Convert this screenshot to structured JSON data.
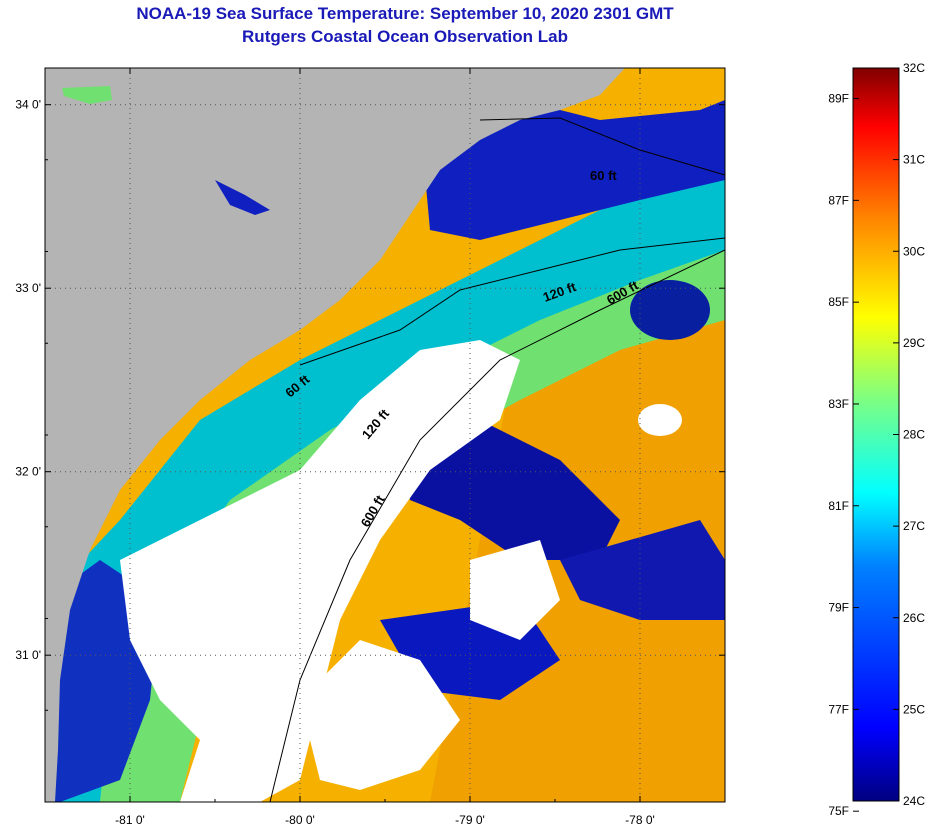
{
  "header": {
    "title": "NOAA-19 Sea Surface Temperature:  September 10, 2020 2301 GMT",
    "subtitle": "Rutgers Coastal Ocean Observation Lab"
  },
  "map": {
    "lon_range": [
      -81.5,
      -77.5
    ],
    "lat_range": [
      30.2,
      34.2
    ],
    "lon_ticks": [
      {
        "value": -81,
        "label": "-81 0'"
      },
      {
        "value": -80,
        "label": "-80 0'"
      },
      {
        "value": -79,
        "label": "-79 0'"
      },
      {
        "value": -78,
        "label": "-78 0'"
      }
    ],
    "lat_ticks": [
      {
        "value": 34,
        "label": "34 0'"
      },
      {
        "value": 33,
        "label": "33 0'"
      },
      {
        "value": 32,
        "label": "32 0'"
      },
      {
        "value": 31,
        "label": "31 0'"
      }
    ],
    "contour_labels": [
      "60 ft",
      "120 ft",
      "600 ft",
      "60 ft",
      "120 ft",
      "600 ft"
    ],
    "land_color": "#b4b4b4",
    "cloud_color": "#ffffff"
  },
  "colorbar": {
    "celsius_labels": [
      "32C",
      "31C",
      "30C",
      "29C",
      "28C",
      "27C",
      "26C",
      "25C",
      "24C"
    ],
    "fahrenheit_labels": [
      "89F",
      "87F",
      "85F",
      "83F",
      "81F",
      "79F",
      "77F",
      "75F"
    ],
    "colors": [
      "#000080",
      "#0000ff",
      "#0080ff",
      "#00ffff",
      "#80ff80",
      "#ffff00",
      "#ff8000",
      "#ff0000",
      "#800000"
    ]
  }
}
